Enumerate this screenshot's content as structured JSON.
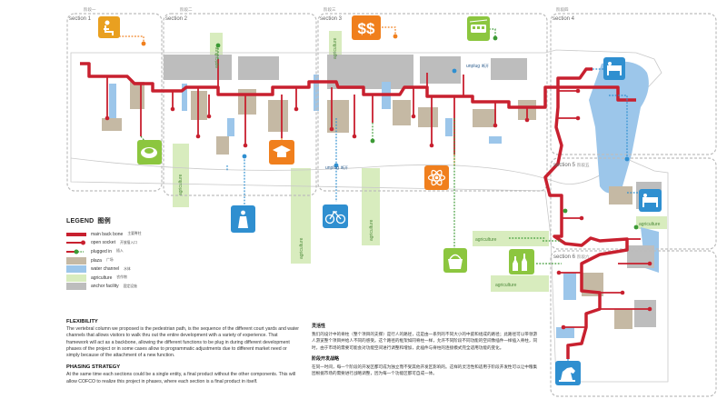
{
  "phases": [
    {
      "label": "阶段一"
    },
    {
      "label": "阶段二"
    },
    {
      "label": "阶段三"
    },
    {
      "label": "阶段四"
    }
  ],
  "sections": [
    {
      "label": "section 1"
    },
    {
      "label": "section 2"
    },
    {
      "label": "section 3"
    },
    {
      "label": "section 4"
    },
    {
      "label": "section 5",
      "zh": "阶段五"
    },
    {
      "label": "section 6",
      "zh": "阶段六"
    }
  ],
  "map_labels": {
    "agriculture": "agriculture",
    "unplug": "unplug",
    "unplug_zh": "断开"
  },
  "colors": {
    "spine": "#c8202f",
    "plugged": "#3c9a35",
    "plaza": "#c5b9a4",
    "water": "#9cc6ea",
    "agriculture": "#d8ecbe",
    "anchor": "#bdbdbd"
  },
  "icons": [
    {
      "name": "sitting-person-icon",
      "color": "#e9a020"
    },
    {
      "name": "money-icon",
      "color": "#f07f1d"
    },
    {
      "name": "tram-icon",
      "color": "#8cc63f"
    },
    {
      "name": "bed-icon",
      "color": "#2f8fd0"
    },
    {
      "name": "plate-icon",
      "color": "#8cc63f"
    },
    {
      "name": "graduation-cap-icon",
      "color": "#f07f1d"
    },
    {
      "name": "atom-icon",
      "color": "#f07f1d"
    },
    {
      "name": "bicycle-icon",
      "color": "#2f8fd0"
    },
    {
      "name": "statue-icon",
      "color": "#2f8fd0"
    },
    {
      "name": "basket-icon",
      "color": "#8cc63f"
    },
    {
      "name": "bottles-icon",
      "color": "#8cc63f"
    },
    {
      "name": "horse-statue-icon",
      "color": "#2f8fd0"
    }
  ],
  "legend": {
    "title": "LEGEND",
    "title_zh": "图例",
    "items": [
      {
        "label": "main back bone",
        "zh": "主要脊柱"
      },
      {
        "label": "open socket",
        "zh": "开放插入口"
      },
      {
        "label": "plugged in",
        "zh": "插入"
      },
      {
        "label": "plaza",
        "zh": "广场"
      },
      {
        "label": "water channel",
        "zh": "水体"
      },
      {
        "label": "agriculture",
        "zh": "农作物"
      },
      {
        "label": "anchor facility",
        "zh": "固定设施"
      }
    ]
  },
  "flexibility": {
    "heading": "FLEXIBILITY",
    "body": "The vertebral column we proposed is the pedestrian path, is the sequence of the different court yards and water channels that allows visitors to walk thru out the entire development with a variety of experience. That framework will act as a backbone, allowing the different functions to be plug in during different development phases of the project or in some cases allow to programmatic adjustments due to different market need or simply because of the attachment of a new function."
  },
  "phasing": {
    "heading": "PHASING STRATEGY",
    "body": "At the same time each sections could be a single entity, a final product without the other components. This will allow COFCO to realize this project in phases, where each section is a final product in itself."
  },
  "flexibility_zh": {
    "heading": "灵活性",
    "body": "我们的设计中的脊柱（整个项目的支撑）是行人的路径，这是由一系列的不同大小的中庭和组成的路径；此路径可以带领游人游览整个项目并给人不同的感受。这个路径的框架如同脊柱一样，允许不同阶段不同功能的空间像插件一样插入脊柱，同时，由于市场的需要可能会对功能空间进行调整和增加，此插件与脊柱的连接模式完全适用功能的变化。"
  },
  "phasing_zh": {
    "heading": "阶段开发战略",
    "body": "在同一时间，每一个阶段的开发区都可成为独立而不受其他开发区影响的。这样的灵活性和适用于阶段开发性可以让中粮集团根据市场的需要进行战略调整，因为每一个功能区都可自成一体。"
  }
}
